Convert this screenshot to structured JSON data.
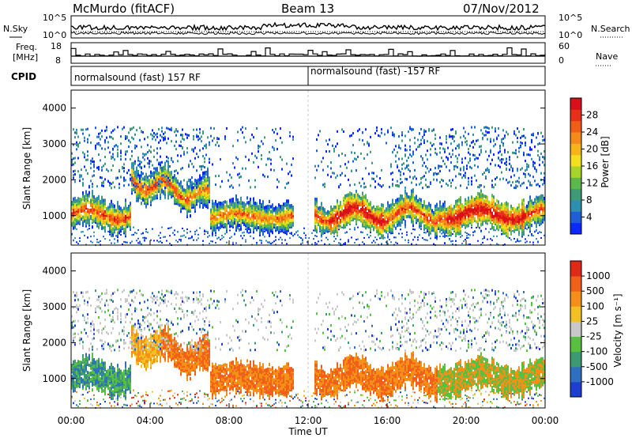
{
  "header": {
    "station": "McMurdo (fitACF)",
    "beam": "Beam 13",
    "date": "07/Nov/2012"
  },
  "top_panel": {
    "left_label": "N.Sky",
    "left_ticks": [
      "10^5",
      "10^0"
    ],
    "right_label": "N.Search",
    "right_ticks": [
      "10^5",
      "10^0"
    ]
  },
  "freq_panel": {
    "left_label_line1": "Freq.",
    "left_label_line2": "[MHz]",
    "left_ticks": [
      "18",
      "8"
    ],
    "right_label": "Nave",
    "right_ticks": [
      "60",
      "0"
    ]
  },
  "cpid_panel": {
    "label": "CPID",
    "segments": [
      "normalsound (fast) 157 RF",
      "normalsound (fast) -157 RF"
    ]
  },
  "chart_data": [
    {
      "type": "heatmap",
      "quantity": "Power",
      "xlabel": "Time UT",
      "ylabel": "Slant Range [km]",
      "xlim": [
        0,
        24
      ],
      "ylim": [
        180,
        4500
      ],
      "x_ticks": [
        "00:00",
        "04:00",
        "08:00",
        "12:00",
        "16:00",
        "20:00",
        "00:00"
      ],
      "y_ticks": [
        "1000",
        "2000",
        "3000",
        "4000"
      ],
      "colorbar": {
        "label": "Power [dB]",
        "range": [
          0,
          32
        ],
        "ticks": [
          "4",
          "8",
          "12",
          "16",
          "20",
          "24",
          "28"
        ],
        "colors": [
          "#0a28ff",
          "#1e5fd6",
          "#2f8fb0",
          "#3f9a78",
          "#5cb84a",
          "#a8d42a",
          "#f2e01e",
          "#f6b418",
          "#f48a1a",
          "#ef5d18",
          "#e83018",
          "#d9101a"
        ]
      },
      "echo_bands": [
        {
          "t_start": 0.2,
          "t_end": 2.8,
          "range_km": 1000
        },
        {
          "t_start": 2.5,
          "t_end": 6.5,
          "range_km": 2200
        },
        {
          "t_start": 6.0,
          "t_end": 11.0,
          "range_km": 1000
        },
        {
          "t_start": 12.3,
          "t_end": 18.5,
          "range_km": 1000
        },
        {
          "t_start": 17.5,
          "t_end": 23.8,
          "range_km": 1050
        }
      ]
    },
    {
      "type": "heatmap",
      "quantity": "Velocity",
      "xlabel": "Time UT",
      "ylabel": "Slant Range [km]",
      "xlim": [
        0,
        24
      ],
      "ylim": [
        180,
        4500
      ],
      "x_ticks": [
        "00:00",
        "04:00",
        "08:00",
        "12:00",
        "16:00",
        "20:00",
        "00:00"
      ],
      "y_ticks": [
        "1000",
        "2000",
        "3000",
        "4000"
      ],
      "colorbar": {
        "label": "Velocity [m s⁻¹]",
        "ticks": [
          "1000",
          "500",
          "100",
          "25",
          "-25",
          "-100",
          "-500",
          "-1000"
        ],
        "colors": [
          "#1c3fd0",
          "#2e6fc0",
          "#3b9a70",
          "#58c040",
          "#c8c8c8",
          "#f2c020",
          "#f49018",
          "#f06018",
          "#e02a18"
        ]
      }
    }
  ],
  "colors": {
    "background": "#ffffff",
    "frame": "#000000",
    "ground_scatter": "#a9a9a9"
  }
}
